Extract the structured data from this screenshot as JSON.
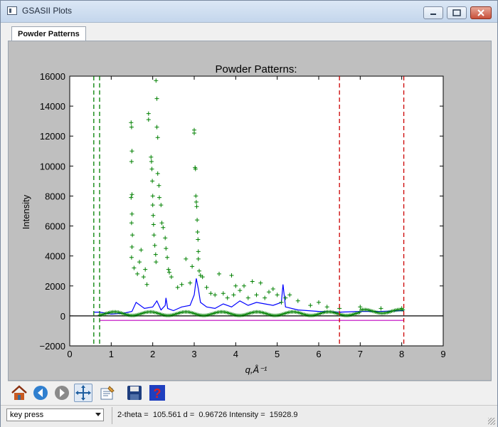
{
  "window": {
    "title": "GSASII Plots"
  },
  "tabs": [
    {
      "label": "Powder Patterns"
    }
  ],
  "chart_data": {
    "type": "scatter",
    "title": "Powder Patterns:",
    "xlabel": "q,Å⁻¹",
    "ylabel": "Intensity",
    "xlim": [
      0,
      9
    ],
    "ylim": [
      -2000,
      16000
    ],
    "xticks": [
      "0",
      "1",
      "2",
      "3",
      "4",
      "5",
      "6",
      "7",
      "8",
      "9"
    ],
    "yticks": [
      "−2000",
      "0",
      "2000",
      "4000",
      "6000",
      "8000",
      "10000",
      "12000",
      "14000",
      "16000"
    ],
    "grid": false,
    "vlines": [
      {
        "x": 0.58,
        "color": "#007f00"
      },
      {
        "x": 0.72,
        "color": "#007f00"
      },
      {
        "x": 6.5,
        "color": "#cc0000"
      },
      {
        "x": 8.05,
        "color": "#cc0000"
      }
    ],
    "hlines": [
      {
        "y": 0,
        "color": "#000000",
        "xrange": [
          0,
          9
        ]
      },
      {
        "y": -300,
        "color": "#bf00bf",
        "xrange": [
          0.72,
          8.05
        ]
      }
    ],
    "series": [
      {
        "type": "scatter",
        "color": "#008000",
        "marker": "+",
        "x": [
          1.48,
          1.49,
          1.5,
          1.49,
          1.5,
          1.48,
          1.5,
          1.49,
          1.51,
          1.5,
          1.49,
          1.55,
          1.63,
          1.68,
          1.72,
          1.78,
          1.82,
          1.86,
          1.9,
          1.9,
          1.96,
          1.97,
          1.98,
          1.99,
          2.0,
          2.0,
          2.01,
          2.02,
          2.03,
          2.05,
          2.07,
          2.08,
          2.08,
          2.1,
          2.1,
          2.12,
          2.12,
          2.15,
          2.16,
          2.2,
          2.22,
          2.25,
          2.3,
          2.32,
          2.35,
          2.38,
          2.4,
          2.45,
          2.6,
          2.7,
          2.8,
          2.9,
          2.95,
          3.0,
          3.0,
          3.02,
          3.03,
          3.04,
          3.05,
          3.06,
          3.07,
          3.08,
          3.09,
          3.1,
          3.1,
          3.12,
          3.15,
          3.2,
          3.3,
          3.4,
          3.5,
          3.6,
          3.7,
          3.8,
          3.9,
          3.95,
          4.0,
          4.1,
          4.2,
          4.3,
          4.4,
          4.5,
          4.6,
          4.7,
          4.8,
          4.9,
          5.0,
          5.1,
          5.2,
          5.3,
          5.5,
          5.8,
          6.0,
          6.2,
          6.5,
          7.0,
          7.5,
          8.0
        ],
        "y": [
          12900,
          12600,
          11000,
          10300,
          8100,
          7900,
          6800,
          6200,
          5400,
          4600,
          3900,
          3200,
          2800,
          3600,
          4400,
          2600,
          3100,
          2100,
          13500,
          13100,
          10600,
          10300,
          9800,
          9000,
          8000,
          7400,
          6700,
          6100,
          5400,
          4700,
          4100,
          3600,
          15700,
          14500,
          12600,
          11900,
          9500,
          8700,
          7900,
          7400,
          6200,
          5900,
          5200,
          4500,
          3900,
          3100,
          2900,
          2600,
          1900,
          2100,
          3800,
          2200,
          3300,
          12400,
          12200,
          9900,
          9800,
          8000,
          7600,
          7300,
          6400,
          5600,
          5100,
          4300,
          3800,
          3000,
          2700,
          2600,
          1900,
          1500,
          1400,
          2800,
          1500,
          1200,
          2700,
          1400,
          2000,
          1700,
          2000,
          1200,
          2300,
          1400,
          2200,
          1200,
          1600,
          1800,
          1400,
          900,
          1200,
          1400,
          1000,
          700,
          900,
          600,
          500,
          600,
          500,
          500
        ]
      },
      {
        "type": "line",
        "color": "#0000ff",
        "x": [
          0.58,
          0.72,
          1.0,
          1.3,
          1.5,
          1.6,
          1.8,
          2.0,
          2.1,
          2.2,
          2.3,
          2.32,
          2.36,
          2.5,
          2.7,
          2.9,
          3.0,
          3.05,
          3.1,
          3.15,
          3.3,
          3.5,
          3.7,
          3.9,
          4.1,
          4.3,
          4.5,
          4.7,
          4.9,
          5.1,
          5.14,
          5.2,
          5.5,
          6.0,
          6.5,
          7.0,
          7.5,
          8.05
        ],
        "y": [
          250,
          250,
          120,
          180,
          300,
          900,
          500,
          600,
          1000,
          400,
          700,
          1200,
          500,
          350,
          600,
          700,
          1400,
          2500,
          1800,
          900,
          600,
          500,
          800,
          600,
          1000,
          700,
          900,
          800,
          700,
          900,
          2100,
          600,
          400,
          300,
          250,
          300,
          300,
          350
        ]
      }
    ]
  },
  "toolbar": {
    "buttons": [
      {
        "icon": "home-icon"
      },
      {
        "icon": "back-arrow-icon"
      },
      {
        "icon": "forward-arrow-icon"
      },
      {
        "icon": "pan-icon",
        "active": true
      },
      {
        "icon": "configure-subplots-icon"
      },
      {
        "icon": "save-icon"
      },
      {
        "icon": "help-icon"
      }
    ]
  },
  "status": {
    "mode_select_value": "key press",
    "readout": "2-theta =  105.561 d =  0.96726 Intensity =  15928.9"
  }
}
